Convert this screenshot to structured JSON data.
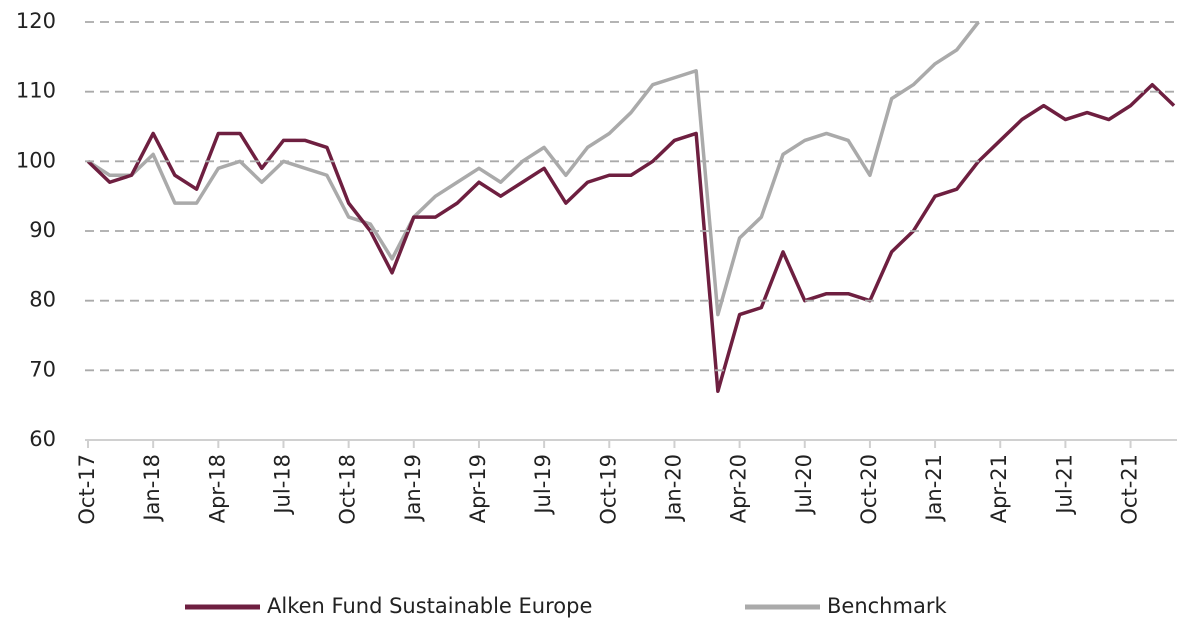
{
  "chart_data": {
    "type": "line",
    "x": [
      "2017-10",
      "2017-11",
      "2017-12",
      "2018-01",
      "2018-02",
      "2018-03",
      "2018-04",
      "2018-05",
      "2018-06",
      "2018-07",
      "2018-08",
      "2018-09",
      "2018-10",
      "2018-11",
      "2018-12",
      "2019-01",
      "2019-02",
      "2019-03",
      "2019-04",
      "2019-05",
      "2019-06",
      "2019-07",
      "2019-08",
      "2019-09",
      "2019-10",
      "2019-11",
      "2019-12",
      "2020-01",
      "2020-02",
      "2020-03",
      "2020-04",
      "2020-05",
      "2020-06",
      "2020-07",
      "2020-08",
      "2020-09",
      "2020-10",
      "2020-11",
      "2020-12",
      "2021-01",
      "2021-02",
      "2021-03",
      "2021-04",
      "2021-05",
      "2021-06",
      "2021-07",
      "2021-08",
      "2021-09",
      "2021-10",
      "2021-11",
      "2021-12"
    ],
    "series": [
      {
        "name": "Alken Fund Sustainable Europe",
        "color": "#6e1f40",
        "values": [
          100,
          97,
          98,
          104,
          98,
          96,
          104,
          104,
          99,
          103,
          103,
          102,
          94,
          90,
          84,
          92,
          92,
          94,
          97,
          95,
          97,
          99,
          94,
          97,
          98,
          98,
          100,
          103,
          104,
          67,
          78,
          79,
          87,
          80,
          81,
          81,
          80,
          87,
          90,
          95,
          96,
          100,
          103,
          106,
          108,
          106,
          107,
          106,
          108,
          111,
          108
        ]
      },
      {
        "name": "Benchmark",
        "color": "#aaaaaa",
        "values": [
          100,
          98,
          98,
          101,
          94,
          94,
          99,
          100,
          97,
          100,
          99,
          98,
          92,
          91,
          86,
          92,
          95,
          97,
          99,
          97,
          100,
          102,
          98,
          102,
          104,
          107,
          111,
          112,
          113,
          78,
          89,
          92,
          101,
          103,
          104,
          103,
          98,
          109,
          111,
          114,
          116,
          120,
          null,
          null,
          null,
          null,
          null,
          null,
          null,
          null,
          null
        ]
      }
    ],
    "xlim": [
      "2017-10",
      "2021-12"
    ],
    "xticks": [
      {
        "value": "2017-10",
        "label": "Oct-17"
      },
      {
        "value": "2018-01",
        "label": "Jan-18"
      },
      {
        "value": "2018-04",
        "label": "Apr-18"
      },
      {
        "value": "2018-07",
        "label": "Jul-18"
      },
      {
        "value": "2018-10",
        "label": "Oct-18"
      },
      {
        "value": "2019-01",
        "label": "Jan-19"
      },
      {
        "value": "2019-04",
        "label": "Apr-19"
      },
      {
        "value": "2019-07",
        "label": "Jul-19"
      },
      {
        "value": "2019-10",
        "label": "Oct-19"
      },
      {
        "value": "2020-01",
        "label": "Jan-20"
      },
      {
        "value": "2020-04",
        "label": "Apr-20"
      },
      {
        "value": "2020-07",
        "label": "Jul-20"
      },
      {
        "value": "2020-10",
        "label": "Oct-20"
      },
      {
        "value": "2021-01",
        "label": "Jan-21"
      },
      {
        "value": "2021-04",
        "label": "Apr-21"
      },
      {
        "value": "2021-07",
        "label": "Jul-21"
      },
      {
        "value": "2021-10",
        "label": "Oct-21"
      }
    ],
    "ylim": [
      60,
      120
    ],
    "yticks": [
      60,
      70,
      80,
      90,
      100,
      110,
      120
    ],
    "grid": true,
    "legend": "bottom"
  }
}
